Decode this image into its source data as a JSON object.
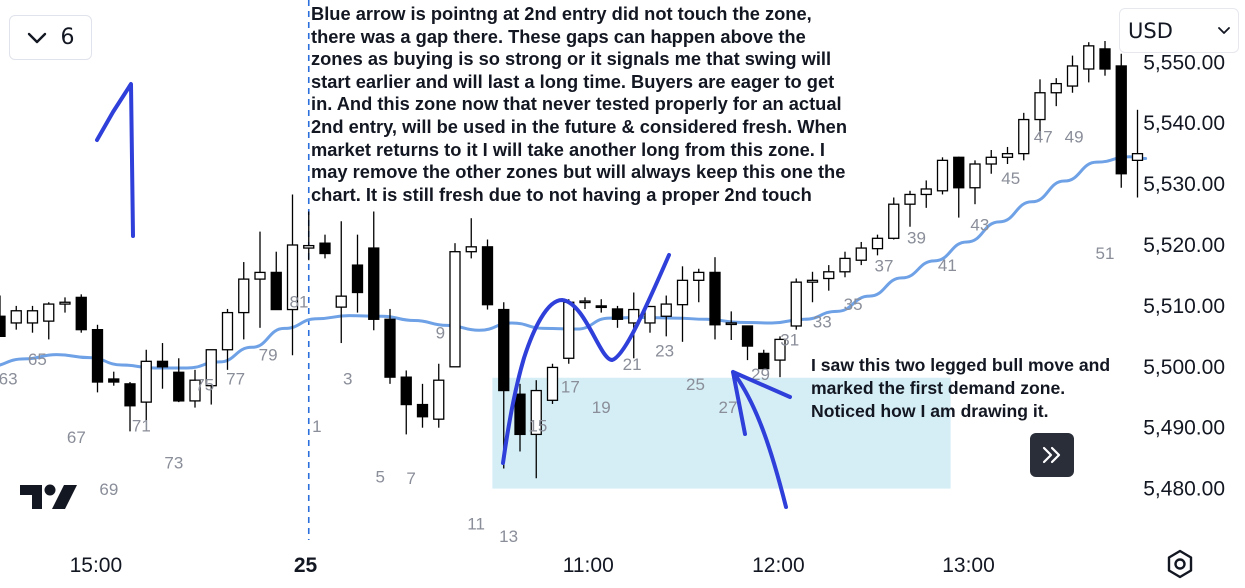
{
  "toolbar": {
    "interval_value": "6",
    "interval_chevron_icon": "chevron-down-icon",
    "currency_label": "USD",
    "currency_chevron_icon": "chevron-down-icon",
    "scroll_to_realtime_icon": "double-chevron-right-icon",
    "settings_icon": "hexagon-gear-icon",
    "logo": "tradingview-logo"
  },
  "annotations": {
    "main_note_lines": [
      "Blue arrow is pointng at 2nd entry did not touch the zone,",
      "there was a gap there. These gaps can happen above the",
      "zones as buying is so strong or it signals me that swing will",
      "start earlier and will last a long time. Buyers are eager to get",
      "in. And this zone now that never tested properly for an actual",
      "2nd entry, will be used in the future & considered fresh. When",
      "market returns to it I will take another long from this zone. I",
      "may remove the other zones but will always keep this one the",
      "chart. It is still fresh due to not having a proper 2nd touch"
    ],
    "side_note_lines": [
      "I saw this two legged bull move and",
      "marked the first demand zone.",
      "Noticed how I am drawing it."
    ]
  },
  "colors": {
    "ma_line": "#6ea1e6",
    "demand_zone": "#d5eef6",
    "drawing": "#2f3fd9",
    "bar_count_label": "#8a8e99",
    "session_divider": "#2a6fdb"
  },
  "chart_data": {
    "type": "candlestick",
    "symbol_timeframe_minutes": 6,
    "y_axis": {
      "tick_labels": [
        "5,480.00",
        "5,490.00",
        "5,500.00",
        "5,510.00",
        "5,520.00",
        "5,530.00",
        "5,540.00",
        "5,550.00"
      ],
      "ylim": [
        5471.7,
        5562
      ]
    },
    "x_axis": {
      "tick_labels": [
        "15:00",
        "25",
        "11:00",
        "12:00",
        "13:00"
      ],
      "tick_bar_index": [
        5.9,
        18.8,
        36.2,
        47.9,
        59.6
      ],
      "bold_labels": [
        "25"
      ]
    },
    "bars": [
      {
        "o": 5508.3,
        "h": 5511.7,
        "l": 5505.0,
        "c": 5505.0
      },
      {
        "o": 5507.2,
        "h": 5510.0,
        "l": 5506.1,
        "c": 5509.2
      },
      {
        "o": 5507.2,
        "h": 5510.0,
        "l": 5505.6,
        "c": 5509.2
      },
      {
        "o": 5507.5,
        "h": 5510.6,
        "l": 5504.5,
        "c": 5510.3
      },
      {
        "o": 5510.3,
        "h": 5511.4,
        "l": 5508.9,
        "c": 5510.6
      },
      {
        "o": 5511.4,
        "h": 5511.9,
        "l": 5505.6,
        "c": 5506.1
      },
      {
        "o": 5506.1,
        "h": 5506.9,
        "l": 5495.8,
        "c": 5497.5
      },
      {
        "o": 5498.0,
        "h": 5499.2,
        "l": 5496.9,
        "c": 5497.5
      },
      {
        "o": 5497.2,
        "h": 5497.5,
        "l": 5489.4,
        "c": 5493.6
      },
      {
        "o": 5494.2,
        "h": 5502.8,
        "l": 5491.1,
        "c": 5500.9
      },
      {
        "o": 5500.9,
        "h": 5503.9,
        "l": 5496.4,
        "c": 5500.0
      },
      {
        "o": 5499.1,
        "h": 5501.4,
        "l": 5494.2,
        "c": 5494.4
      },
      {
        "o": 5494.4,
        "h": 5499.5,
        "l": 5493.3,
        "c": 5497.8
      },
      {
        "o": 5496.9,
        "h": 5502.2,
        "l": 5493.8,
        "c": 5502.8
      },
      {
        "o": 5502.8,
        "h": 5509.5,
        "l": 5499.5,
        "c": 5508.9
      },
      {
        "o": 5508.9,
        "h": 5517.2,
        "l": 5504.5,
        "c": 5514.4
      },
      {
        "o": 5514.4,
        "h": 5522.2,
        "l": 5506.4,
        "c": 5515.5
      },
      {
        "o": 5515.5,
        "h": 5518.9,
        "l": 5509.4,
        "c": 5509.4
      },
      {
        "o": 5509.4,
        "h": 5528.3,
        "l": 5501.9,
        "c": 5520.0
      },
      {
        "o": 5519.5,
        "h": 5525.5,
        "l": 5517.5,
        "c": 5519.9
      },
      {
        "o": 5520.3,
        "h": 5521.7,
        "l": 5517.8,
        "c": 5518.6
      },
      {
        "o": 5509.8,
        "h": 5523.9,
        "l": 5503.9,
        "c": 5511.6
      },
      {
        "o": 5516.7,
        "h": 5521.7,
        "l": 5508.9,
        "c": 5512.2
      },
      {
        "o": 5519.5,
        "h": 5525.5,
        "l": 5506.0,
        "c": 5507.8
      },
      {
        "o": 5507.8,
        "h": 5509.5,
        "l": 5497.2,
        "c": 5498.3
      },
      {
        "o": 5498.3,
        "h": 5499.4,
        "l": 5488.9,
        "c": 5493.8
      },
      {
        "o": 5493.8,
        "h": 5497.2,
        "l": 5490.0,
        "c": 5491.8
      },
      {
        "o": 5491.4,
        "h": 5500.5,
        "l": 5490.0,
        "c": 5497.8
      },
      {
        "o": 5500.0,
        "h": 5520.3,
        "l": 5500.0,
        "c": 5518.9
      },
      {
        "o": 5518.9,
        "h": 5524.4,
        "l": 5517.8,
        "c": 5519.7
      },
      {
        "o": 5519.7,
        "h": 5520.9,
        "l": 5509.4,
        "c": 5510.2
      },
      {
        "o": 5509.4,
        "h": 5510.6,
        "l": 5483.3,
        "c": 5496.1
      },
      {
        "o": 5495.5,
        "h": 5497.2,
        "l": 5486.1,
        "c": 5488.9
      },
      {
        "o": 5488.9,
        "h": 5497.8,
        "l": 5481.7,
        "c": 5496.1
      },
      {
        "o": 5494.5,
        "h": 5500.5,
        "l": 5493.9,
        "c": 5499.9
      },
      {
        "o": 5501.4,
        "h": 5511.1,
        "l": 5500.5,
        "c": 5510.6
      },
      {
        "o": 5510.6,
        "h": 5511.4,
        "l": 5509.5,
        "c": 5510.8
      },
      {
        "o": 5510.0,
        "h": 5511.1,
        "l": 5508.9,
        "c": 5509.8
      },
      {
        "o": 5509.5,
        "h": 5510.0,
        "l": 5506.4,
        "c": 5507.8
      },
      {
        "o": 5507.2,
        "h": 5512.2,
        "l": 5501.4,
        "c": 5509.4
      },
      {
        "o": 5507.2,
        "h": 5510.0,
        "l": 5505.6,
        "c": 5509.9
      },
      {
        "o": 5508.3,
        "h": 5511.7,
        "l": 5505.0,
        "c": 5510.3
      },
      {
        "o": 5510.2,
        "h": 5516.5,
        "l": 5504.1,
        "c": 5514.2
      },
      {
        "o": 5514.2,
        "h": 5516.1,
        "l": 5510.6,
        "c": 5515.5
      },
      {
        "o": 5515.5,
        "h": 5518.0,
        "l": 5504.5,
        "c": 5506.9
      },
      {
        "o": 5507.2,
        "h": 5509.1,
        "l": 5504.4,
        "c": 5507.2
      },
      {
        "o": 5506.7,
        "h": 5506.7,
        "l": 5501.1,
        "c": 5503.4
      },
      {
        "o": 5502.2,
        "h": 5502.8,
        "l": 5499.7,
        "c": 5499.7
      },
      {
        "o": 5501.1,
        "h": 5505.0,
        "l": 5498.3,
        "c": 5504.5
      },
      {
        "o": 5506.7,
        "h": 5514.5,
        "l": 5506.1,
        "c": 5513.9
      },
      {
        "o": 5513.9,
        "h": 5515.6,
        "l": 5510.6,
        "c": 5514.2
      },
      {
        "o": 5514.5,
        "h": 5516.7,
        "l": 5512.5,
        "c": 5515.6
      },
      {
        "o": 5515.6,
        "h": 5518.9,
        "l": 5514.7,
        "c": 5517.8
      },
      {
        "o": 5517.5,
        "h": 5520.5,
        "l": 5516.7,
        "c": 5519.5
      },
      {
        "o": 5519.4,
        "h": 5521.7,
        "l": 5518.3,
        "c": 5521.1
      },
      {
        "o": 5521.1,
        "h": 5527.8,
        "l": 5520.9,
        "c": 5526.7
      },
      {
        "o": 5526.7,
        "h": 5528.9,
        "l": 5523.0,
        "c": 5528.3
      },
      {
        "o": 5528.3,
        "h": 5530.6,
        "l": 5526.1,
        "c": 5529.2
      },
      {
        "o": 5528.9,
        "h": 5534.4,
        "l": 5528.3,
        "c": 5533.9
      },
      {
        "o": 5534.4,
        "h": 5534.5,
        "l": 5524.5,
        "c": 5529.4
      },
      {
        "o": 5529.4,
        "h": 5533.9,
        "l": 5526.7,
        "c": 5533.3
      },
      {
        "o": 5533.3,
        "h": 5535.6,
        "l": 5531.7,
        "c": 5534.4
      },
      {
        "o": 5534.4,
        "h": 5536.1,
        "l": 5533.3,
        "c": 5535.0
      },
      {
        "o": 5535.0,
        "h": 5541.7,
        "l": 5533.9,
        "c": 5540.6
      },
      {
        "o": 5540.6,
        "h": 5547.2,
        "l": 5537.8,
        "c": 5545.0
      },
      {
        "o": 5545.0,
        "h": 5547.4,
        "l": 5542.8,
        "c": 5546.5
      },
      {
        "o": 5546.1,
        "h": 5551.1,
        "l": 5545.0,
        "c": 5549.4
      },
      {
        "o": 5548.9,
        "h": 5553.3,
        "l": 5546.7,
        "c": 5552.7
      },
      {
        "o": 5552.2,
        "h": 5553.5,
        "l": 5547.8,
        "c": 5548.9
      },
      {
        "o": 5549.4,
        "h": 5551.4,
        "l": 5529.4,
        "c": 5531.7
      },
      {
        "o": 5533.9,
        "h": 5542.2,
        "l": 5527.8,
        "c": 5535.0
      }
    ],
    "ma_series": {
      "x": [
        -0.8,
        1.5,
        3.5,
        5.5,
        7.5,
        9.5,
        11.5,
        13.5,
        15.5,
        17.5,
        19.5,
        21.5,
        23.5,
        25.5,
        27.5,
        29.5,
        31.5,
        33.5,
        35.5,
        37.5,
        39.5,
        41.5,
        43.5,
        45.5,
        47.5,
        49.5,
        51.5,
        53.5,
        55.5,
        57.5,
        59.5,
        61.5,
        63.5,
        65.5,
        67.5,
        69.5,
        70.5
      ],
      "y": [
        5500.0,
        5501.3,
        5502.0,
        5501.5,
        5500.3,
        5499.8,
        5499.8,
        5500.8,
        5503.2,
        5506.3,
        5507.9,
        5508.4,
        5508.3,
        5507.6,
        5506.8,
        5506.0,
        5507.2,
        5506.3,
        5506.2,
        5508.0,
        5508.1,
        5508.0,
        5507.8,
        5507.3,
        5507.2,
        5507.8,
        5509.1,
        5511.6,
        5514.6,
        5517.4,
        5520.5,
        5523.8,
        5527.1,
        5530.5,
        5533.6,
        5534.5,
        5534.2
      ]
    },
    "bar_count_labels": [
      {
        "text": "63",
        "x": 0.5,
        "y": 5498.1
      },
      {
        "text": "65",
        "x": 2.3,
        "y": 5501.3
      },
      {
        "text": "67",
        "x": 4.7,
        "y": 5488.5
      },
      {
        "text": "69",
        "x": 6.7,
        "y": 5479.9
      },
      {
        "text": "71",
        "x": 8.7,
        "y": 5490.4
      },
      {
        "text": "73",
        "x": 10.7,
        "y": 5484.3
      },
      {
        "text": "75",
        "x": 12.6,
        "y": 5497.1
      },
      {
        "text": "77",
        "x": 14.5,
        "y": 5498.1
      },
      {
        "text": "79",
        "x": 16.5,
        "y": 5502.0
      },
      {
        "text": "81",
        "x": 18.4,
        "y": 5510.7
      },
      {
        "text": "1",
        "x": 19.5,
        "y": 5490.3
      },
      {
        "text": "3",
        "x": 21.4,
        "y": 5498.1
      },
      {
        "text": "5",
        "x": 23.4,
        "y": 5482.0
      },
      {
        "text": "7",
        "x": 25.3,
        "y": 5481.7
      },
      {
        "text": "9",
        "x": 27.1,
        "y": 5505.6
      },
      {
        "text": "11",
        "x": 29.3,
        "y": 5474.3
      },
      {
        "text": "13",
        "x": 31.3,
        "y": 5472.2
      },
      {
        "text": "15",
        "x": 33.1,
        "y": 5490.4
      },
      {
        "text": "17",
        "x": 35.1,
        "y": 5496.8
      },
      {
        "text": "19",
        "x": 37.0,
        "y": 5493.4
      },
      {
        "text": "21",
        "x": 38.9,
        "y": 5500.5
      },
      {
        "text": "23",
        "x": 40.9,
        "y": 5502.7
      },
      {
        "text": "25",
        "x": 42.8,
        "y": 5497.2
      },
      {
        "text": "27",
        "x": 44.8,
        "y": 5493.4
      },
      {
        "text": "29",
        "x": 46.8,
        "y": 5498.8
      },
      {
        "text": "31",
        "x": 48.6,
        "y": 5504.5
      },
      {
        "text": "33",
        "x": 50.6,
        "y": 5507.4
      },
      {
        "text": "35",
        "x": 52.5,
        "y": 5510.3
      },
      {
        "text": "37",
        "x": 54.4,
        "y": 5516.6
      },
      {
        "text": "39",
        "x": 56.4,
        "y": 5521.2
      },
      {
        "text": "41",
        "x": 58.3,
        "y": 5516.7
      },
      {
        "text": "43",
        "x": 60.3,
        "y": 5523.4
      },
      {
        "text": "45",
        "x": 62.2,
        "y": 5531.0
      },
      {
        "text": "47",
        "x": 64.2,
        "y": 5537.8
      },
      {
        "text": "49",
        "x": 66.1,
        "y": 5537.8
      },
      {
        "text": "51",
        "x": 68.0,
        "y": 5518.7
      }
    ],
    "demand_zone": {
      "x0": 30.3,
      "x1": 58.5,
      "y_low": 5480.0,
      "y_high": 5498.2
    },
    "session_divider_x": 19.0
  }
}
